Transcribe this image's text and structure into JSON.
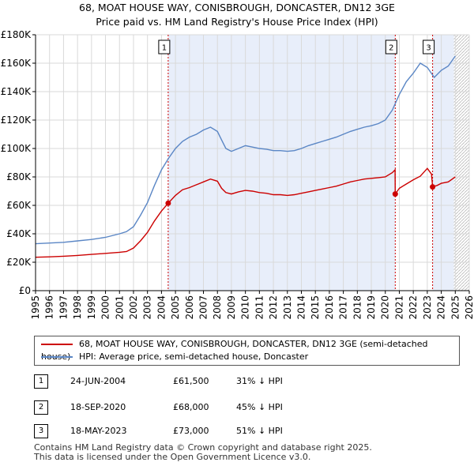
{
  "title_line1": "68, MOAT HOUSE WAY, CONISBROUGH, DONCASTER, DN12 3GE",
  "title_line2": "Price paid vs. HM Land Registry's House Price Index (HPI)",
  "colors": {
    "property": "#cc0000",
    "hpi": "#5a86c5",
    "shade": "#e8eefa",
    "grid": "#d9d9d9",
    "vline": "#cc0000"
  },
  "chart_data": {
    "type": "line",
    "xlim": [
      1995,
      2026
    ],
    "ylim": [
      0,
      180000
    ],
    "x_ticks": [
      1995,
      1996,
      1997,
      1998,
      1999,
      2000,
      2001,
      2002,
      2003,
      2004,
      2005,
      2006,
      2007,
      2008,
      2009,
      2010,
      2011,
      2012,
      2013,
      2014,
      2015,
      2016,
      2017,
      2018,
      2019,
      2020,
      2021,
      2022,
      2023,
      2024,
      2025,
      2026
    ],
    "x_tick_labels": [
      "1995",
      "1996",
      "1997",
      "1998",
      "1999",
      "2000",
      "2001",
      "2002",
      "2003",
      "2004",
      "2005",
      "2006",
      "2007",
      "2008",
      "2009",
      "2010",
      "2011",
      "2012",
      "2013",
      "2014",
      "2015",
      "2016",
      "2017",
      "2018",
      "2019",
      "2020",
      "2021",
      "2022",
      "2023",
      "2024",
      "2025",
      "2026"
    ],
    "y_ticks": [
      0,
      20000,
      40000,
      60000,
      80000,
      100000,
      120000,
      140000,
      160000,
      180000
    ],
    "y_tick_labels": [
      "£0",
      "£20K",
      "£40K",
      "£60K",
      "£80K",
      "£100K",
      "£120K",
      "£140K",
      "£160K",
      "£180K"
    ],
    "shaded_ranges": [
      [
        2004.48,
        2020.71
      ],
      [
        2023.38,
        2024.9
      ]
    ],
    "hatched_from": 2024.9,
    "series": [
      {
        "name": "68, MOAT HOUSE WAY, CONISBROUGH, DONCASTER, DN12 3GE (semi-detached house)",
        "x": [
          1995.0,
          1996.0,
          1997.0,
          1998.0,
          1999.0,
          2000.0,
          2001.0,
          2001.5,
          2002.0,
          2002.5,
          2003.0,
          2003.5,
          2004.0,
          2004.48,
          2005.0,
          2005.5,
          2006.0,
          2006.5,
          2007.0,
          2007.5,
          2008.0,
          2008.3,
          2008.6,
          2009.0,
          2009.5,
          2010.0,
          2010.5,
          2011.0,
          2011.5,
          2012.0,
          2012.5,
          2013.0,
          2013.5,
          2014.0,
          2014.5,
          2015.0,
          2015.5,
          2016.0,
          2016.5,
          2017.0,
          2017.5,
          2018.0,
          2018.5,
          2019.0,
          2019.5,
          2020.0,
          2020.5,
          2020.7,
          2020.71,
          2021.0,
          2021.5,
          2022.0,
          2022.5,
          2023.0,
          2023.3,
          2023.38,
          2023.7,
          2024.0,
          2024.5,
          2025.0
        ],
        "values": [
          23500,
          23800,
          24200,
          24800,
          25500,
          26200,
          27000,
          27500,
          30000,
          35000,
          41000,
          49000,
          56000,
          61500,
          67000,
          71000,
          72500,
          74500,
          76500,
          78500,
          77000,
          72000,
          69000,
          68000,
          69500,
          70500,
          70000,
          69000,
          68500,
          67500,
          67500,
          67000,
          67500,
          68500,
          69500,
          70500,
          71500,
          72500,
          73500,
          75000,
          76500,
          77500,
          78500,
          79000,
          79500,
          80000,
          83000,
          85000,
          68000,
          72000,
          75000,
          78000,
          80500,
          86000,
          82000,
          73000,
          74000,
          75500,
          76500,
          80000
        ]
      },
      {
        "name": "HPI: Average price, semi-detached house, Doncaster",
        "x": [
          1995.0,
          1996.0,
          1997.0,
          1998.0,
          1999.0,
          2000.0,
          2001.0,
          2001.5,
          2002.0,
          2002.5,
          2003.0,
          2003.5,
          2004.0,
          2004.5,
          2005.0,
          2005.5,
          2006.0,
          2006.5,
          2007.0,
          2007.5,
          2008.0,
          2008.3,
          2008.6,
          2009.0,
          2009.5,
          2010.0,
          2010.5,
          2011.0,
          2011.5,
          2012.0,
          2012.5,
          2013.0,
          2013.5,
          2014.0,
          2014.5,
          2015.0,
          2015.5,
          2016.0,
          2016.5,
          2017.0,
          2017.5,
          2018.0,
          2018.5,
          2019.0,
          2019.5,
          2020.0,
          2020.5,
          2021.0,
          2021.5,
          2022.0,
          2022.5,
          2023.0,
          2023.5,
          2024.0,
          2024.5,
          2025.0
        ],
        "values": [
          33000,
          33500,
          34000,
          35000,
          36000,
          37500,
          40000,
          41500,
          45000,
          53000,
          62000,
          74000,
          85000,
          93000,
          100000,
          105000,
          108000,
          110000,
          113000,
          115000,
          112000,
          106000,
          100000,
          98000,
          100000,
          102000,
          101000,
          100000,
          99500,
          98500,
          98500,
          98000,
          98500,
          100000,
          102000,
          103500,
          105000,
          106500,
          108000,
          110000,
          112000,
          113500,
          115000,
          116000,
          117500,
          120000,
          127000,
          138000,
          147000,
          153000,
          160000,
          157000,
          150000,
          155000,
          158000,
          165000
        ]
      }
    ],
    "sale_points": [
      {
        "x": 2004.48,
        "value": 61500
      },
      {
        "x": 2020.71,
        "value": 68000
      },
      {
        "x": 2023.38,
        "value": 73000
      }
    ],
    "markers": [
      {
        "label": "1",
        "x": 2004.48
      },
      {
        "label": "2",
        "x": 2020.71
      },
      {
        "label": "3",
        "x": 2023.38
      }
    ]
  },
  "legend": {
    "items": [
      {
        "label": "68, MOAT HOUSE WAY, CONISBROUGH, DONCASTER, DN12 3GE (semi-detached house)",
        "color": "#cc0000"
      },
      {
        "label": "HPI: Average price, semi-detached house, Doncaster",
        "color": "#5a86c5"
      }
    ]
  },
  "transactions": [
    {
      "num": "1",
      "date": "24-JUN-2004",
      "price": "£61,500",
      "hpi": "31% ↓ HPI"
    },
    {
      "num": "2",
      "date": "18-SEP-2020",
      "price": "£68,000",
      "hpi": "45% ↓ HPI"
    },
    {
      "num": "3",
      "date": "18-MAY-2023",
      "price": "£73,000",
      "hpi": "51% ↓ HPI"
    }
  ],
  "footer": {
    "line1": "Contains HM Land Registry data © Crown copyright and database right 2025.",
    "line2": "This data is licensed under the Open Government Licence v3.0."
  }
}
